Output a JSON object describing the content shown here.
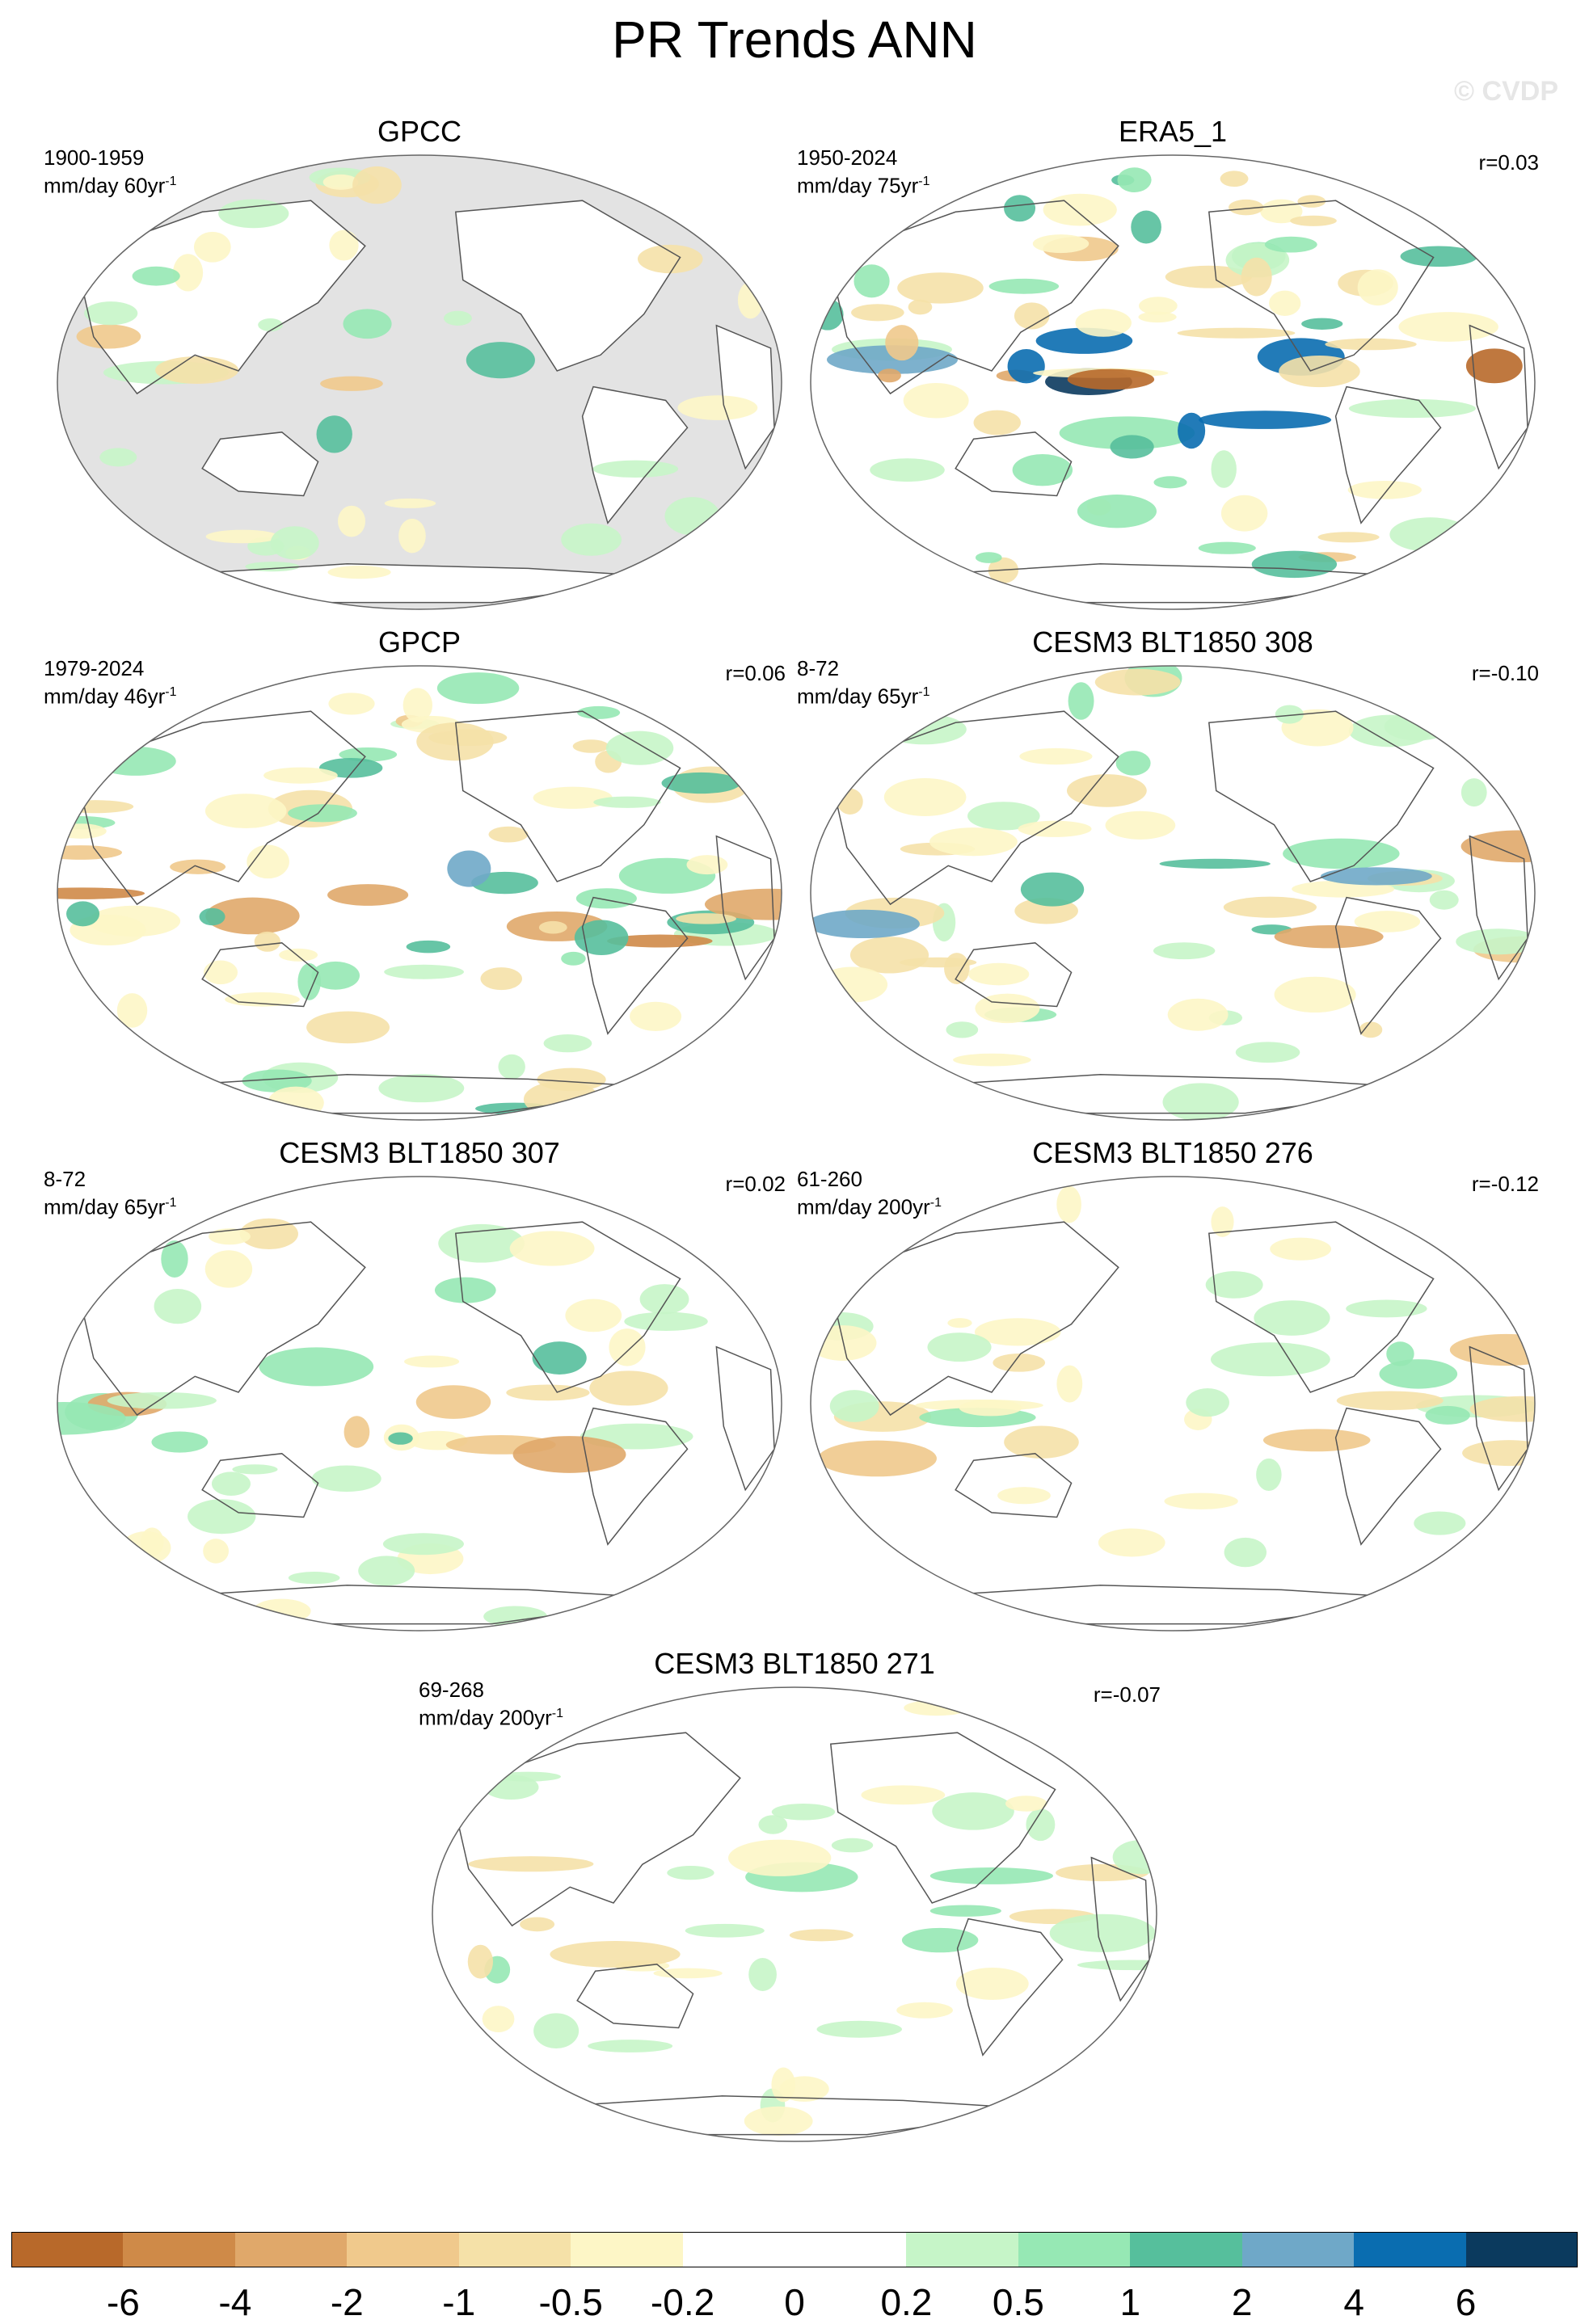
{
  "title": "PR Trends ANN",
  "watermark": "© CVDP",
  "panels": [
    {
      "name": "GPCC",
      "years": "1900-1959",
      "units": "mm/day 60yr",
      "corr": "",
      "masked_ocean": true
    },
    {
      "name": "ERA5_1",
      "years": "1950-2024",
      "units": "mm/day 75yr",
      "corr": "r=0.03",
      "masked_ocean": false
    },
    {
      "name": "GPCP",
      "years": "1979-2024",
      "units": "mm/day 46yr",
      "corr": "r=0.06",
      "masked_ocean": false
    },
    {
      "name": "CESM3 BLT1850 308",
      "years": "8-72",
      "units": "mm/day 65yr",
      "corr": "r=-0.10",
      "masked_ocean": false
    },
    {
      "name": "CESM3 BLT1850 307",
      "years": "8-72",
      "units": "mm/day 65yr",
      "corr": "r=0.02",
      "masked_ocean": false
    },
    {
      "name": "CESM3 BLT1850 276",
      "years": "61-260",
      "units": "mm/day 200yr",
      "corr": "r=-0.12",
      "masked_ocean": false
    },
    {
      "name": "CESM3 BLT1850 271",
      "years": "69-268",
      "units": "mm/day 200yr",
      "corr": "r=-0.07",
      "masked_ocean": false
    }
  ],
  "superscript": "-1",
  "colorbar": {
    "colors": [
      "#b8692a",
      "#cf8a48",
      "#e0a86a",
      "#f0c98c",
      "#f5e1a8",
      "#fdf6c6",
      "#ffffff",
      "#ffffff",
      "#c6f5c8",
      "#96e8b4",
      "#56bf9c",
      "#6fa8c8",
      "#0a6db0",
      "#0b3a5e"
    ],
    "labels": [
      "-6",
      "-4",
      "-2",
      "-1",
      "-0.5",
      "-0.2",
      "0",
      "0.2",
      "0.5",
      "1",
      "2",
      "4",
      "6"
    ]
  }
}
